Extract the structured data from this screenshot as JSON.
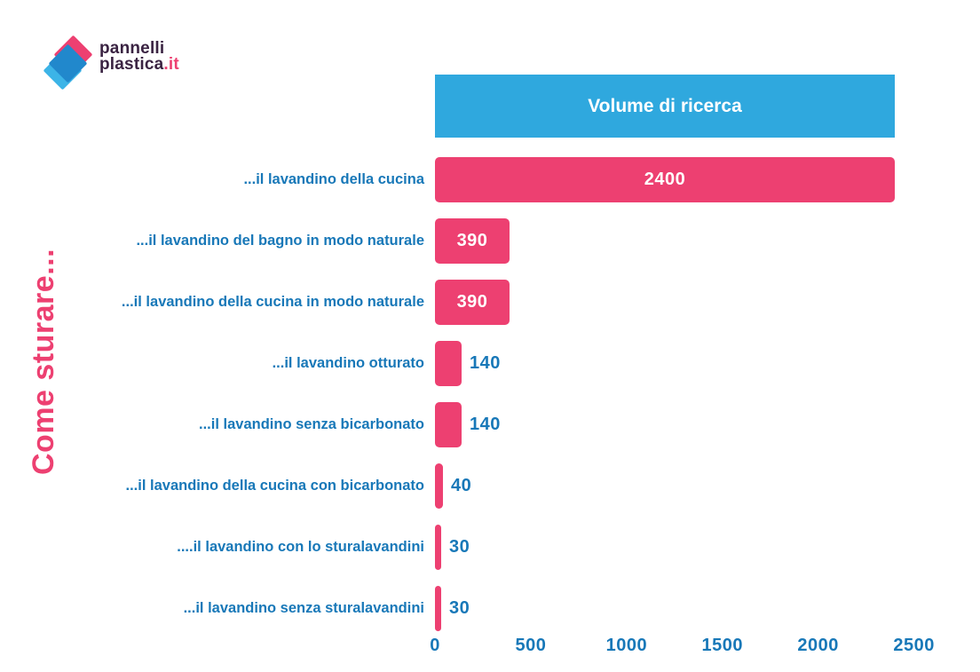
{
  "logo": {
    "line1": "pannelli",
    "line2": "plastica",
    "suffix": ".it",
    "colors": {
      "text": "#3A2342",
      "suffix": "#ED4071",
      "diamond_pink": "#ED4071",
      "diamond_blue": "#2188CC",
      "diamond_lightblue": "#3CB4E7"
    }
  },
  "chart_data": {
    "type": "bar",
    "orientation": "horizontal",
    "title": "Volume di ricerca",
    "ylabel": "Come sturare...",
    "xlabel": "",
    "categories": [
      "...il lavandino della cucina",
      "...il lavandino del bagno in modo naturale",
      "...il lavandino della cucina in modo naturale",
      "...il lavandino otturato",
      "...il lavandino senza bicarbonato",
      "...il lavandino della cucina con bicarbonato",
      "....il lavandino con lo sturalavandini",
      "...il lavandino senza sturalavandini"
    ],
    "values": [
      2400,
      390,
      390,
      140,
      140,
      40,
      30,
      30
    ],
    "xlim": [
      0,
      2500
    ],
    "x_ticks": [
      "0",
      "500",
      "1000",
      "1500",
      "2000",
      "2500"
    ],
    "grid": false,
    "legend": false,
    "colors": {
      "bar": "#ED4071",
      "header_bg": "#2FA8DE",
      "header_text": "#FFFFFF",
      "category_text": "#1878B8",
      "tick_text": "#1878B8",
      "value_in_bar": "#FFFFFF",
      "value_outside": "#1878B8"
    }
  }
}
